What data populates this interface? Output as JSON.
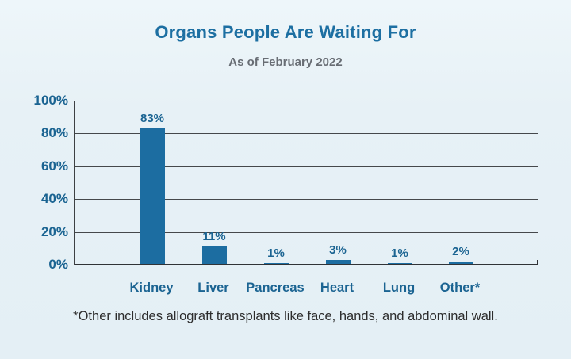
{
  "chart_data": {
    "type": "bar",
    "title": "Organs People Are Waiting For",
    "subtitle": "As of February 2022",
    "categories": [
      "Kidney",
      "Liver",
      "Pancreas",
      "Heart",
      "Lung",
      "Other*"
    ],
    "values": [
      83,
      11,
      1,
      3,
      1,
      2
    ],
    "value_labels": [
      "83%",
      "11%",
      "1%",
      "3%",
      "1%",
      "2%"
    ],
    "y_ticks": [
      "100%",
      "80%",
      "60%",
      "40%",
      "20%",
      "0%"
    ],
    "ylim": [
      0,
      100
    ],
    "grid": true,
    "legend": "none",
    "bar_color": "#1c6da1",
    "xlabel": "",
    "ylabel": ""
  },
  "footnote": "*Other includes allograft transplants like face, hands, and abdominal wall.",
  "colors": {
    "background": "#e8f2f7",
    "title_text": "#1d6fa2",
    "subtitle_text": "#686d74",
    "axis_label_text": "#1b6492",
    "grid_line": "#45484b",
    "footnote_text": "#2d2d2d"
  }
}
